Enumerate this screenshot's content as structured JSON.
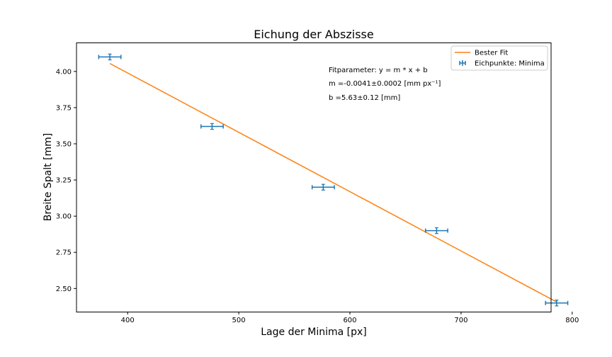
{
  "chart_data": {
    "type": "scatter",
    "title": "Eichung der Abszisse",
    "xlabel": "Lage der Minima [px]",
    "ylabel": "Breite Spalt [mm]",
    "xlim": [
      354,
      781
    ],
    "ylim": [
      2.34,
      4.2
    ],
    "xticks": [
      400,
      500,
      600,
      700,
      800
    ],
    "yticks": [
      2.5,
      2.75,
      3.0,
      3.25,
      3.5,
      3.75,
      4.0
    ],
    "xtick_labels": [
      "400",
      "500",
      "600",
      "700",
      "800"
    ],
    "ytick_labels": [
      "2.50",
      "2.75",
      "3.00",
      "3.25",
      "3.50",
      "3.75",
      "4.00"
    ],
    "grid": false,
    "legend_position": "top-right",
    "series": [
      {
        "name": "Eichpunkte: Minima",
        "kind": "errorbar",
        "color": "#1f77b4",
        "x": [
          384,
          476,
          576,
          678,
          786
        ],
        "y": [
          4.1,
          3.62,
          3.2,
          2.9,
          2.4
        ],
        "xerr": [
          10,
          10,
          10,
          10,
          10
        ],
        "yerr": [
          0.02,
          0.02,
          0.02,
          0.02,
          0.02
        ]
      },
      {
        "name": "Bester Fit",
        "kind": "line",
        "color": "#ff7f0e",
        "x": [
          384,
          786
        ],
        "y": [
          4.055,
          2.407
        ]
      }
    ],
    "annotations": [
      "Fitparameter: y = m * x + b",
      "m =-0.0041±0.0002 [mm px⁻¹]",
      "b =5.63±0.12 [mm]"
    ]
  }
}
